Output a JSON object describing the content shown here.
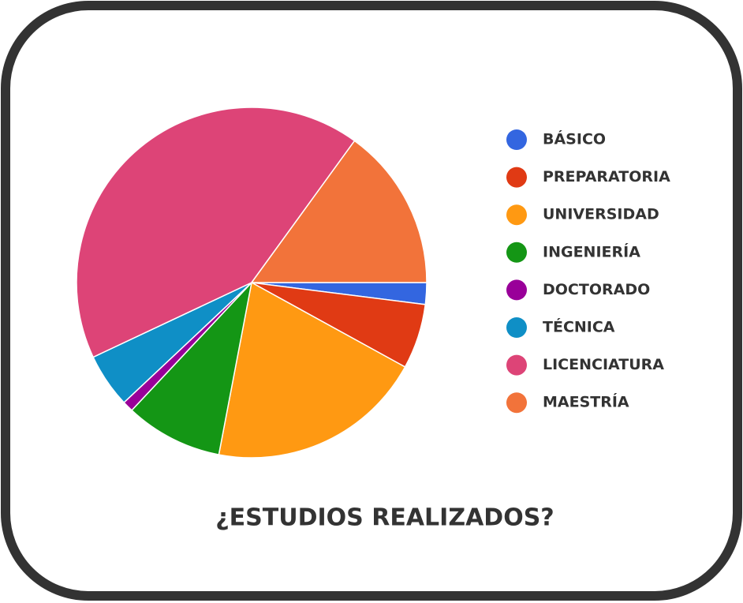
{
  "chart_data": {
    "type": "pie",
    "title": "¿ESTUDIOS REALIZADOS?",
    "categories": [
      "BÁSICO",
      "PREPARATORIA",
      "UNIVERSIDAD",
      "INGENIERÍA",
      "DOCTORADO",
      "TÉCNICA",
      "LICENCIATURA",
      "MAESTRÍA"
    ],
    "values": [
      2,
      6,
      20,
      9,
      1,
      5,
      42,
      15
    ],
    "colors": [
      "#3366e0",
      "#e03a14",
      "#ff9912",
      "#149615",
      "#990099",
      "#0f8fc6",
      "#dd4477",
      "#f2733a"
    ],
    "legend": "right"
  }
}
